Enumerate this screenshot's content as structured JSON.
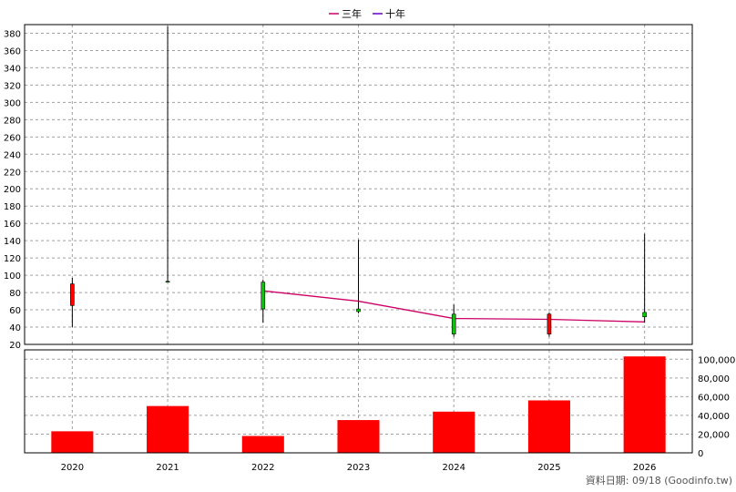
{
  "legend": {
    "items": [
      {
        "label": "三年",
        "color": "#cc0066"
      },
      {
        "label": "十年",
        "color": "#6600cc"
      }
    ]
  },
  "footer": {
    "text": "資料日期: 09/18  (Goodinfo.tw)"
  },
  "colors": {
    "up": "#00cc00",
    "down": "#ff0000",
    "volume": "#ff0000",
    "three_year_line": "#cc0066"
  },
  "chart_data": [
    {
      "type": "candlestick",
      "title": "",
      "categories": [
        "2020",
        "2021",
        "2022",
        "2023",
        "2024",
        "2025",
        "2026"
      ],
      "ylim": [
        20,
        390
      ],
      "yticks": [
        20,
        40,
        60,
        80,
        100,
        120,
        140,
        160,
        180,
        200,
        220,
        240,
        260,
        280,
        300,
        320,
        340,
        360,
        380
      ],
      "candles": [
        {
          "x": "2020",
          "open": 90,
          "high": 97,
          "low": 40,
          "close": 65
        },
        {
          "x": "2021",
          "open": 93,
          "high": 388,
          "low": 92,
          "close": 93
        },
        {
          "x": "2022",
          "open": 61,
          "high": 95,
          "low": 45,
          "close": 92
        },
        {
          "x": "2023",
          "open": 58,
          "high": 141,
          "low": 56,
          "close": 61
        },
        {
          "x": "2024",
          "open": 32,
          "high": 66,
          "low": 29,
          "close": 55
        },
        {
          "x": "2025",
          "open": 55,
          "high": 57,
          "low": 29,
          "close": 32
        },
        {
          "x": "2026",
          "open": 52,
          "high": 148,
          "low": 45,
          "close": 57
        }
      ],
      "lines": [
        {
          "name": "三年",
          "points": [
            {
              "x": "2022",
              "y": 82
            },
            {
              "x": "2023",
              "y": 70
            },
            {
              "x": "2024",
              "y": 50
            },
            {
              "x": "2025",
              "y": 49
            },
            {
              "x": "2026",
              "y": 46
            }
          ]
        }
      ],
      "grid": true
    },
    {
      "type": "bar",
      "categories": [
        "2020",
        "2021",
        "2022",
        "2023",
        "2024",
        "2025",
        "2026"
      ],
      "values": [
        23000,
        50000,
        18000,
        35000,
        44000,
        56000,
        103000
      ],
      "ylim": [
        0,
        110000
      ],
      "yticks": [
        0,
        20000,
        40000,
        60000,
        80000,
        100000
      ],
      "ytick_labels": [
        "0",
        "20,000",
        "40,000",
        "60,000",
        "80,000",
        "100,000"
      ],
      "grid": true
    }
  ]
}
